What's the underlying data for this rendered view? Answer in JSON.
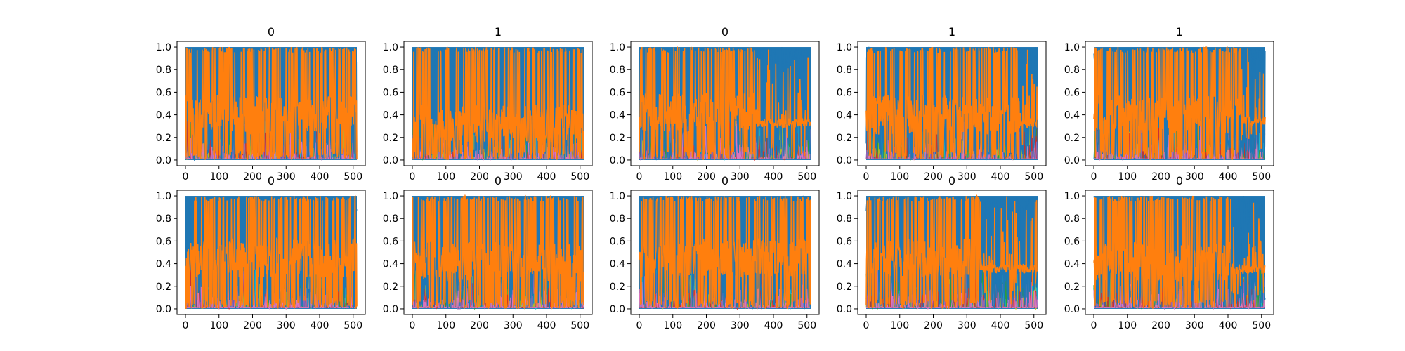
{
  "chart_data": {
    "type": "line",
    "layout": {
      "rows": 2,
      "cols": 5
    },
    "x_range": [
      0,
      511
    ],
    "x_ticks": [
      0,
      100,
      200,
      300,
      400,
      500
    ],
    "y_range": [
      0,
      1
    ],
    "y_ticks": [
      0.0,
      0.2,
      0.4,
      0.6,
      0.8,
      1.0
    ],
    "grid": false,
    "legend": "none",
    "colors": [
      "#1f77b4",
      "#ff7f0e",
      "#17becf",
      "#2ca02c",
      "#bcbd22",
      "#d62728",
      "#9467bd",
      "#e377c2"
    ],
    "panels": [
      {
        "title": "0",
        "orange_level": 0.4,
        "shift": null
      },
      {
        "title": "1",
        "orange_level": 0.32,
        "shift": null
      },
      {
        "title": "0",
        "orange_level": 0.42,
        "shift": {
          "x": 350,
          "level": 0.33
        }
      },
      {
        "title": "1",
        "orange_level": 0.4,
        "shift": {
          "x": 460,
          "level": 0.33
        }
      },
      {
        "title": "1",
        "orange_level": 0.4,
        "shift": {
          "x": 440,
          "level": 0.35
        }
      },
      {
        "title": "0",
        "orange_level": 0.45,
        "shift": null
      },
      {
        "title": "0",
        "orange_level": 0.42,
        "shift": null
      },
      {
        "title": "0",
        "orange_level": 0.45,
        "shift": null
      },
      {
        "title": "0",
        "orange_level": 0.45,
        "shift": {
          "x": 340,
          "level": 0.36
        }
      },
      {
        "title": "0",
        "orange_level": 0.42,
        "shift": {
          "x": 410,
          "level": 0.35
        }
      }
    ]
  }
}
